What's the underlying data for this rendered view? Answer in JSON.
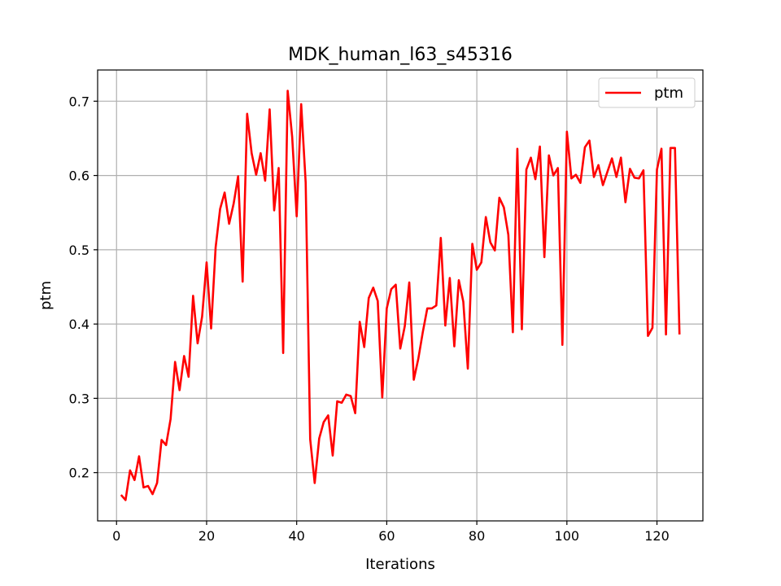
{
  "chart_data": {
    "type": "line",
    "title": "MDK_human_l63_s45316",
    "xlabel": "Iterations",
    "ylabel": "ptm",
    "xlim": [
      -4.2,
      130.2
    ],
    "ylim": [
      0.135,
      0.742
    ],
    "xticks": [
      0,
      20,
      40,
      60,
      80,
      100,
      120
    ],
    "yticks": [
      0.2,
      0.3,
      0.4,
      0.5,
      0.6,
      0.7
    ],
    "ytick_labels": [
      "0.2",
      "0.3",
      "0.4",
      "0.5",
      "0.6",
      "0.7"
    ],
    "grid": true,
    "legend": "top-right",
    "series": [
      {
        "name": "ptm",
        "color": "#ff0000",
        "x": [
          1,
          2,
          3,
          4,
          5,
          6,
          7,
          8,
          9,
          10,
          11,
          12,
          13,
          14,
          15,
          16,
          17,
          18,
          19,
          20,
          21,
          22,
          23,
          24,
          25,
          26,
          27,
          28,
          29,
          30,
          31,
          32,
          33,
          34,
          35,
          36,
          37,
          38,
          39,
          40,
          41,
          42,
          43,
          44,
          45,
          46,
          47,
          48,
          49,
          50,
          51,
          52,
          53,
          54,
          55,
          56,
          57,
          58,
          59,
          60,
          61,
          62,
          63,
          64,
          65,
          66,
          67,
          68,
          69,
          70,
          71,
          72,
          73,
          74,
          75,
          76,
          77,
          78,
          79,
          80,
          81,
          82,
          83,
          84,
          85,
          86,
          87,
          88,
          89,
          90,
          91,
          92,
          93,
          94,
          95,
          96,
          97,
          98,
          99,
          100,
          101,
          102,
          103,
          104,
          105,
          106,
          107,
          108,
          109,
          110,
          111,
          112,
          113,
          114,
          115,
          116,
          117,
          118,
          119,
          120,
          121,
          122,
          123,
          124,
          125
        ],
        "values": [
          0.17,
          0.163,
          0.203,
          0.19,
          0.222,
          0.18,
          0.182,
          0.171,
          0.186,
          0.244,
          0.237,
          0.272,
          0.349,
          0.311,
          0.357,
          0.329,
          0.438,
          0.374,
          0.41,
          0.483,
          0.394,
          0.503,
          0.555,
          0.577,
          0.535,
          0.562,
          0.599,
          0.457,
          0.683,
          0.63,
          0.601,
          0.63,
          0.593,
          0.689,
          0.553,
          0.61,
          0.361,
          0.714,
          0.652,
          0.545,
          0.696,
          0.59,
          0.245,
          0.186,
          0.246,
          0.268,
          0.277,
          0.223,
          0.296,
          0.294,
          0.305,
          0.303,
          0.28,
          0.403,
          0.369,
          0.435,
          0.449,
          0.431,
          0.301,
          0.421,
          0.447,
          0.453,
          0.367,
          0.397,
          0.456,
          0.325,
          0.353,
          0.389,
          0.421,
          0.421,
          0.425,
          0.516,
          0.398,
          0.462,
          0.37,
          0.459,
          0.43,
          0.34,
          0.508,
          0.473,
          0.483,
          0.544,
          0.51,
          0.499,
          0.57,
          0.557,
          0.52,
          0.389,
          0.636,
          0.393,
          0.608,
          0.624,
          0.595,
          0.639,
          0.49,
          0.627,
          0.6,
          0.61,
          0.372,
          0.659,
          0.596,
          0.601,
          0.59,
          0.638,
          0.647,
          0.598,
          0.614,
          0.587,
          0.605,
          0.623,
          0.598,
          0.624,
          0.564,
          0.609,
          0.597,
          0.596,
          0.607,
          0.384,
          0.395,
          0.608,
          0.636,
          0.386,
          0.637,
          0.637,
          0.386
        ]
      }
    ]
  }
}
